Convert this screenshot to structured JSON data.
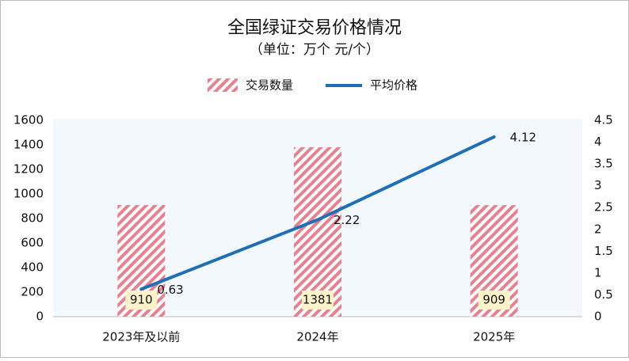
{
  "chart_data": {
    "type": "bar",
    "title": "全国绿证交易价格情况",
    "subtitle": "（单位：万个 元/个）",
    "categories": [
      "2023年及以前",
      "2024年",
      "2025年"
    ],
    "series": [
      {
        "name": "交易数量",
        "type": "bar",
        "color": "#e8808f",
        "values": [
          910,
          1381,
          909
        ]
      },
      {
        "name": "平均价格",
        "type": "line",
        "axis": "y2",
        "color": "#1f6fb5",
        "values": [
          0.63,
          2.22,
          4.12
        ]
      }
    ],
    "ylim": [
      0,
      1600
    ],
    "yticks": [
      0,
      200,
      400,
      600,
      800,
      1000,
      1200,
      1400,
      1600
    ],
    "y2lim": [
      0,
      4.5
    ],
    "y2ticks": [
      0,
      0.5,
      1,
      1.5,
      2,
      2.5,
      3,
      3.5,
      4,
      4.5
    ],
    "legend": "top"
  }
}
